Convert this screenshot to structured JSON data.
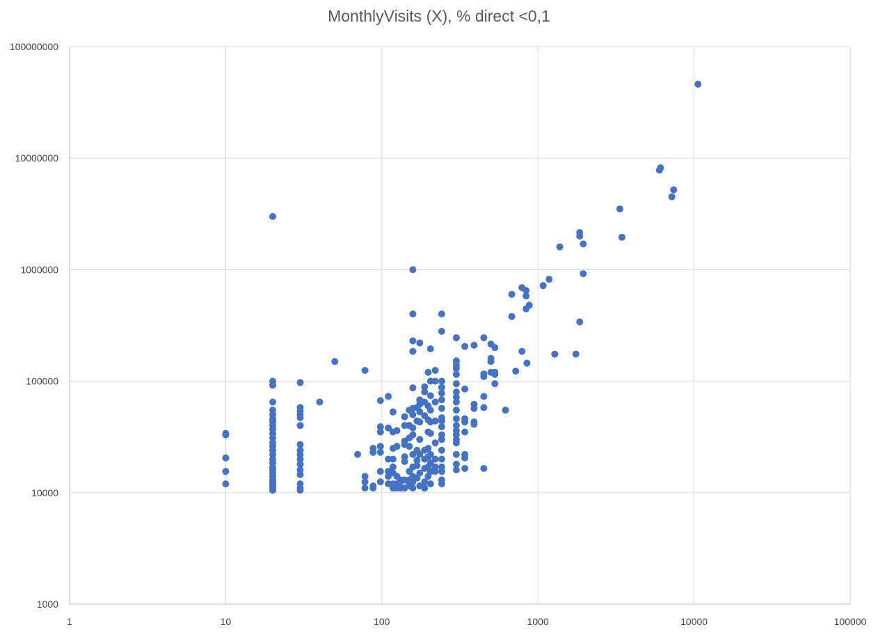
{
  "chart_data": {
    "type": "scatter",
    "title": "MonthlyVisits (X), % direct <0,1",
    "xlabel": "",
    "ylabel": "",
    "x_scale": "log",
    "y_scale": "log",
    "xlim": [
      1,
      100000
    ],
    "ylim": [
      1000,
      100000000
    ],
    "x_ticks": [
      "1",
      "10",
      "100",
      "1000",
      "10000",
      "100000"
    ],
    "y_ticks": [
      "1000",
      "10000",
      "100000",
      "1000000",
      "10000000",
      "100000000"
    ],
    "grid": true,
    "legend": "none",
    "colors": {
      "marker": "#4472C4",
      "grid": "#d9d9d9",
      "axis": "#bfbfbf",
      "text": "#595959"
    },
    "series": [
      {
        "points": [
          [
            10,
            34000
          ],
          [
            10,
            33000
          ],
          [
            10,
            20500
          ],
          [
            10,
            15500
          ],
          [
            10,
            12000
          ],
          [
            20,
            3000000
          ],
          [
            20,
            100000
          ],
          [
            20,
            92000
          ],
          [
            20,
            65000
          ],
          [
            20,
            55000
          ],
          [
            20,
            50000
          ],
          [
            20,
            46000
          ],
          [
            20,
            43000
          ],
          [
            20,
            40000
          ],
          [
            20,
            37000
          ],
          [
            20,
            34000
          ],
          [
            20,
            31000
          ],
          [
            20,
            28000
          ],
          [
            20,
            26000
          ],
          [
            20,
            24000
          ],
          [
            20,
            22000
          ],
          [
            20,
            20000
          ],
          [
            20,
            18500
          ],
          [
            20,
            17000
          ],
          [
            20,
            16000
          ],
          [
            20,
            15000
          ],
          [
            20,
            14000
          ],
          [
            20,
            13000
          ],
          [
            20,
            12500
          ],
          [
            20,
            12000
          ],
          [
            20,
            11500
          ],
          [
            20,
            11000
          ],
          [
            20,
            10500
          ],
          [
            30,
            97000
          ],
          [
            30,
            58000
          ],
          [
            30,
            54000
          ],
          [
            30,
            50000
          ],
          [
            30,
            47000
          ],
          [
            30,
            40000
          ],
          [
            30,
            27000
          ],
          [
            30,
            24000
          ],
          [
            30,
            22000
          ],
          [
            30,
            20000
          ],
          [
            30,
            18000
          ],
          [
            30,
            16000
          ],
          [
            30,
            14500
          ],
          [
            30,
            12000
          ],
          [
            30,
            11000
          ],
          [
            30,
            10500
          ],
          [
            40,
            65000
          ],
          [
            50,
            150000
          ],
          [
            70,
            22000
          ],
          [
            78,
            125000
          ],
          [
            78,
            14000
          ],
          [
            78,
            12500
          ],
          [
            78,
            11000
          ],
          [
            88,
            25000
          ],
          [
            88,
            23000
          ],
          [
            88,
            11500
          ],
          [
            88,
            11000
          ],
          [
            98,
            67000
          ],
          [
            98,
            39000
          ],
          [
            98,
            35000
          ],
          [
            98,
            26000
          ],
          [
            98,
            23000
          ],
          [
            98,
            15500
          ],
          [
            98,
            12500
          ],
          [
            110,
            73000
          ],
          [
            110,
            38000
          ],
          [
            110,
            20000
          ],
          [
            110,
            15500
          ],
          [
            110,
            14000
          ],
          [
            110,
            12000
          ],
          [
            118,
            53000
          ],
          [
            118,
            35000
          ],
          [
            118,
            25000
          ],
          [
            118,
            20000
          ],
          [
            118,
            17000
          ],
          [
            118,
            15000
          ],
          [
            118,
            12000
          ],
          [
            118,
            11000
          ],
          [
            125,
            36000
          ],
          [
            125,
            26000
          ],
          [
            125,
            14000
          ],
          [
            125,
            12000
          ],
          [
            125,
            11000
          ],
          [
            132,
            13000
          ],
          [
            132,
            11000
          ],
          [
            132,
            12500
          ],
          [
            140,
            48000
          ],
          [
            140,
            40000
          ],
          [
            140,
            29000
          ],
          [
            140,
            27000
          ],
          [
            140,
            21000
          ],
          [
            140,
            19000
          ],
          [
            140,
            13000
          ],
          [
            140,
            11000
          ],
          [
            150,
            55000
          ],
          [
            150,
            40000
          ],
          [
            150,
            31000
          ],
          [
            150,
            26000
          ],
          [
            150,
            15500
          ],
          [
            150,
            13000
          ],
          [
            150,
            12000
          ],
          [
            150,
            11500
          ],
          [
            158,
            1000000
          ],
          [
            158,
            400000
          ],
          [
            158,
            230000
          ],
          [
            158,
            185000
          ],
          [
            158,
            87000
          ],
          [
            158,
            57000
          ],
          [
            158,
            50000
          ],
          [
            158,
            38000
          ],
          [
            158,
            33000
          ],
          [
            158,
            22000
          ],
          [
            158,
            17000
          ],
          [
            158,
            14000
          ],
          [
            158,
            12500
          ],
          [
            158,
            11000
          ],
          [
            168,
            58000
          ],
          [
            168,
            44000
          ],
          [
            168,
            24000
          ],
          [
            168,
            19500
          ],
          [
            168,
            17500
          ],
          [
            168,
            13500
          ],
          [
            175,
            220000
          ],
          [
            175,
            68000
          ],
          [
            175,
            62000
          ],
          [
            175,
            53000
          ],
          [
            175,
            43000
          ],
          [
            175,
            30000
          ],
          [
            175,
            22000
          ],
          [
            175,
            15000
          ],
          [
            175,
            11500
          ],
          [
            188,
            89000
          ],
          [
            188,
            80000
          ],
          [
            188,
            65000
          ],
          [
            188,
            49000
          ],
          [
            188,
            24000
          ],
          [
            188,
            20000
          ],
          [
            188,
            16500
          ],
          [
            188,
            12500
          ],
          [
            188,
            11000
          ],
          [
            198,
            120000
          ],
          [
            198,
            60000
          ],
          [
            198,
            45000
          ],
          [
            198,
            35000
          ],
          [
            198,
            25000
          ],
          [
            198,
            21000
          ],
          [
            198,
            17000
          ],
          [
            198,
            14000
          ],
          [
            205,
            195000
          ],
          [
            205,
            100000
          ],
          [
            205,
            74000
          ],
          [
            205,
            55000
          ],
          [
            205,
            43000
          ],
          [
            205,
            34000
          ],
          [
            205,
            22000
          ],
          [
            205,
            18500
          ],
          [
            205,
            15500
          ],
          [
            205,
            12000
          ],
          [
            220,
            125000
          ],
          [
            220,
            100000
          ],
          [
            220,
            65000
          ],
          [
            220,
            44000
          ],
          [
            220,
            28000
          ],
          [
            220,
            20000
          ],
          [
            220,
            17000
          ],
          [
            220,
            15500
          ],
          [
            242,
            400000
          ],
          [
            242,
            280000
          ],
          [
            242,
            100000
          ],
          [
            242,
            88000
          ],
          [
            242,
            78000
          ],
          [
            242,
            68000
          ],
          [
            242,
            57000
          ],
          [
            242,
            47000
          ],
          [
            242,
            44000
          ],
          [
            242,
            39000
          ],
          [
            242,
            33000
          ],
          [
            242,
            30000
          ],
          [
            242,
            24000
          ],
          [
            242,
            20000
          ],
          [
            242,
            17000
          ],
          [
            242,
            15500
          ],
          [
            242,
            13000
          ],
          [
            242,
            12000
          ],
          [
            300,
            245000
          ],
          [
            300,
            152000
          ],
          [
            300,
            140000
          ],
          [
            300,
            130000
          ],
          [
            300,
            115000
          ],
          [
            300,
            95000
          ],
          [
            300,
            80000
          ],
          [
            300,
            72000
          ],
          [
            300,
            65000
          ],
          [
            300,
            55000
          ],
          [
            300,
            46000
          ],
          [
            300,
            40000
          ],
          [
            300,
            36000
          ],
          [
            300,
            33000
          ],
          [
            300,
            30000
          ],
          [
            300,
            28000
          ],
          [
            300,
            22000
          ],
          [
            300,
            18000
          ],
          [
            300,
            16000
          ],
          [
            340,
            205000
          ],
          [
            340,
            85000
          ],
          [
            340,
            46000
          ],
          [
            340,
            43000
          ],
          [
            340,
            35000
          ],
          [
            340,
            22000
          ],
          [
            340,
            20500
          ],
          [
            340,
            16500
          ],
          [
            390,
            210000
          ],
          [
            390,
            62000
          ],
          [
            390,
            57000
          ],
          [
            390,
            43000
          ],
          [
            390,
            41000
          ],
          [
            450,
            245000
          ],
          [
            450,
            116000
          ],
          [
            450,
            110000
          ],
          [
            450,
            73000
          ],
          [
            450,
            58000
          ],
          [
            450,
            16500
          ],
          [
            500,
            215000
          ],
          [
            500,
            160000
          ],
          [
            500,
            150000
          ],
          [
            500,
            120000
          ],
          [
            530,
            200000
          ],
          [
            530,
            120000
          ],
          [
            530,
            115000
          ],
          [
            530,
            95000
          ],
          [
            620,
            55000
          ],
          [
            680,
            600000
          ],
          [
            680,
            380000
          ],
          [
            720,
            123000
          ],
          [
            790,
            690000
          ],
          [
            790,
            185000
          ],
          [
            840,
            650000
          ],
          [
            840,
            580000
          ],
          [
            840,
            445000
          ],
          [
            850,
            145000
          ],
          [
            880,
            480000
          ],
          [
            1080,
            720000
          ],
          [
            1180,
            820000
          ],
          [
            1280,
            175000
          ],
          [
            1380,
            1600000
          ],
          [
            1750,
            175000
          ],
          [
            1850,
            2150000
          ],
          [
            1850,
            2000000
          ],
          [
            1850,
            340000
          ],
          [
            1950,
            1700000
          ],
          [
            1950,
            920000
          ],
          [
            3350,
            3500000
          ],
          [
            3450,
            1950000
          ],
          [
            6000,
            7800000
          ],
          [
            6100,
            8200000
          ],
          [
            7200,
            4500000
          ],
          [
            7400,
            5200000
          ],
          [
            10600,
            46000000
          ]
        ]
      }
    ]
  }
}
